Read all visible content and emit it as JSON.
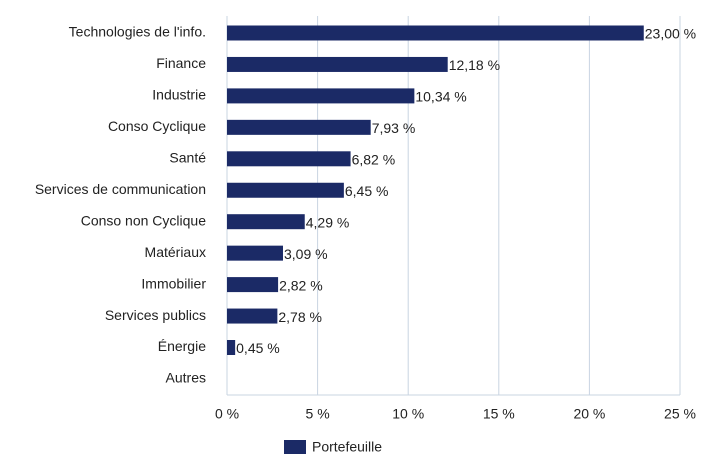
{
  "chart_data": {
    "type": "bar",
    "orientation": "horizontal",
    "categories": [
      "Technologies de l'info.",
      "Finance",
      "Industrie",
      "Conso Cyclique",
      "Santé",
      "Services de communication",
      "Conso non Cyclique",
      "Matériaux",
      "Immobilier",
      "Services publics",
      "Énergie",
      "Autres"
    ],
    "series": [
      {
        "name": "Portefeuille",
        "color": "#1b2a66",
        "values": [
          23.0,
          12.18,
          10.34,
          7.93,
          6.82,
          6.45,
          4.29,
          3.09,
          2.82,
          2.78,
          0.45,
          null
        ],
        "value_labels": [
          "23,00 %",
          "12,18 %",
          "10,34 %",
          "7,93 %",
          "6,82 %",
          "6,45 %",
          "4,29 %",
          "3,09 %",
          "2,82 %",
          "2,78 %",
          "0,45 %",
          null
        ]
      }
    ],
    "xlim": [
      0,
      25
    ],
    "xticks": [
      {
        "value": 0,
        "label": "0 %"
      },
      {
        "value": 5,
        "label": "5 %"
      },
      {
        "value": 10,
        "label": "10 %"
      },
      {
        "value": 15,
        "label": "15 %"
      },
      {
        "value": 20,
        "label": "20 %"
      },
      {
        "value": 25,
        "label": "25 %"
      }
    ],
    "grid": true,
    "legend": "bottom"
  }
}
